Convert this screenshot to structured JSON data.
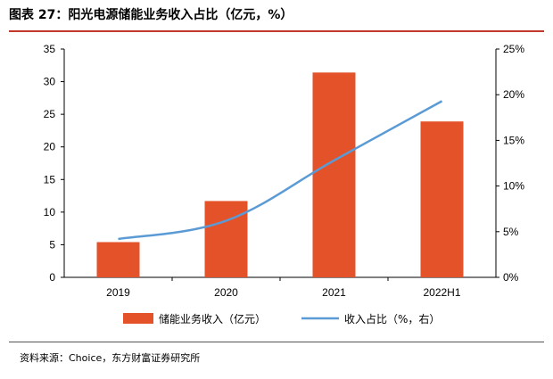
{
  "title": "图表 27：阳光电源储能业务收入占比（亿元，%）",
  "source": "资料来源：Choice，东方财富证券研究所",
  "colors": {
    "bar": "#e4522a",
    "line": "#5b9bd5",
    "accent": "#c0392b"
  },
  "chart_data": {
    "type": "bar",
    "categories": [
      "2019",
      "2020",
      "2021",
      "2022H1"
    ],
    "series": [
      {
        "name": "储能业务收入（亿元）",
        "type": "bar",
        "axis": "left",
        "values": [
          5.4,
          11.7,
          31.4,
          23.9
        ]
      },
      {
        "name": "收入占比（%，右）",
        "type": "line",
        "axis": "right",
        "values": [
          4.2,
          6.2,
          12.8,
          19.3
        ]
      }
    ],
    "left_axis": {
      "ylim": [
        0,
        35
      ],
      "ticks": [
        "0",
        "5",
        "10",
        "15",
        "20",
        "25",
        "30",
        "35"
      ]
    },
    "right_axis": {
      "ylim": [
        0,
        25
      ],
      "ticks": [
        "0%",
        "5%",
        "10%",
        "15%",
        "20%",
        "25%"
      ]
    },
    "legend_position": "bottom"
  }
}
